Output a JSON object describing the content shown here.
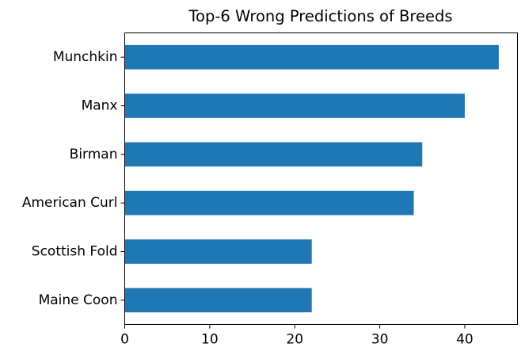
{
  "chart_data": {
    "type": "bar",
    "orientation": "horizontal",
    "title": "Top-6 Wrong Predictions of Breeds",
    "xlabel": "",
    "ylabel": "",
    "categories": [
      "Munchkin",
      "Manx",
      "Birman",
      "American Curl",
      "Scottish Fold",
      "Maine Coon"
    ],
    "values": [
      44,
      40,
      35,
      34,
      22,
      22
    ],
    "xlim": [
      0,
      46.2
    ],
    "xticks": [
      0,
      10,
      20,
      30,
      40
    ],
    "bar_color": "#1f77b4",
    "grid": false,
    "legend": "none"
  }
}
